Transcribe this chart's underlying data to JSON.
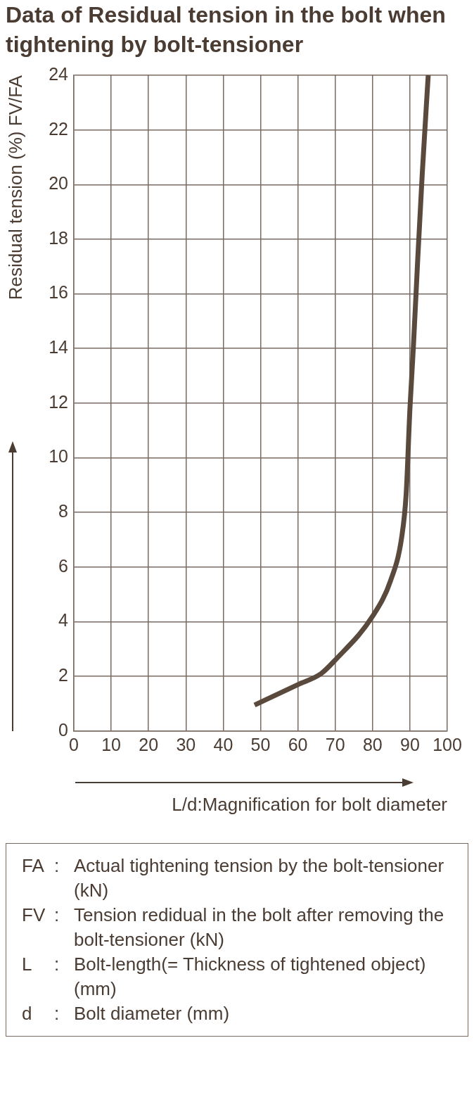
{
  "chart_data": {
    "type": "line",
    "title": "Data of Residual tension in the bolt when tightening by bolt-tensioner",
    "xlabel": "L/d:Magnification for bolt diameter",
    "ylabel": "Residual tension (%) FV/FA",
    "x": [
      48.4,
      60,
      66.2,
      70,
      80,
      84.8,
      87.8,
      89,
      90,
      90.9,
      92.1,
      93.3,
      94.9
    ],
    "series": [
      {
        "color": "#5a4a3e",
        "values": [
          0.95,
          1.7,
          2.1,
          2.6,
          4.2,
          5.5,
          7.1,
          8.7,
          11.8,
          14,
          17.3,
          20.4,
          24
        ]
      }
    ],
    "xlim": [
      0,
      100
    ],
    "xticks": [
      0,
      10,
      20,
      30,
      40,
      50,
      60,
      70,
      80,
      90,
      100
    ],
    "ylim": [
      0,
      24
    ],
    "yticks": [
      0,
      2,
      4,
      6,
      8,
      10,
      12,
      14,
      16,
      18,
      20,
      22,
      24
    ],
    "grid": true,
    "legend": false,
    "marker": "none",
    "line_style": "solid",
    "annotations": [
      "FA : Actual tightening tension by the bolt-tensioner (kN)",
      "FV : Tension redidual in the bolt after removing the bolt-tensioner (kN)",
      "L : Bolt-length(= Thickness of tightened object)(mm)",
      "d : Bolt diameter (mm)"
    ]
  }
}
